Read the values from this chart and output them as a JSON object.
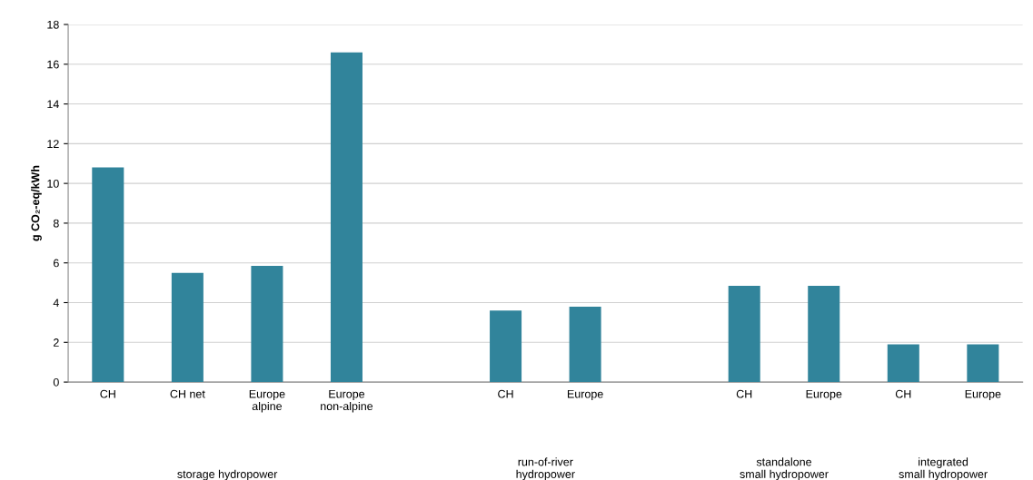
{
  "chart_data": {
    "type": "bar",
    "ylabel": "g CO₂-eq/kWh",
    "categories": [
      "CH",
      "CH net",
      "Europe\nalpine",
      "Europe\nnon-alpine",
      null,
      "CH",
      "Europe",
      null,
      "CH",
      "Europe",
      "CH",
      "Europe"
    ],
    "values": [
      10.8,
      5.5,
      5.85,
      16.6,
      null,
      3.6,
      3.8,
      null,
      4.85,
      4.85,
      1.9,
      1.9
    ],
    "color": "#31849b",
    "ylim": [
      0,
      18
    ],
    "yticks": [
      0,
      2,
      4,
      6,
      8,
      10,
      12,
      14,
      16,
      18
    ],
    "grid": "y",
    "annotations": [
      "storage hydropower",
      "run-of-river\nhydropower",
      "standalone\nsmall hydropower",
      "integrated\nsmall hydropower"
    ]
  }
}
